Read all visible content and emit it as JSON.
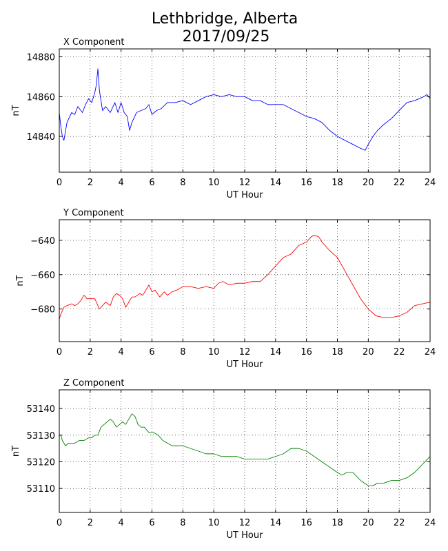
{
  "title": "Lethbridge, Alberta",
  "subtitle": "2017/09/25",
  "chart_data": [
    {
      "type": "line",
      "title": "X Component",
      "xlabel": "UT Hour",
      "ylabel": "nT",
      "color": "#0000ff",
      "xlim": [
        0,
        24
      ],
      "ylim": [
        14822,
        14884
      ],
      "xticks": [
        0,
        2,
        4,
        6,
        8,
        10,
        12,
        14,
        16,
        18,
        20,
        22,
        24
      ],
      "yticks": [
        14840,
        14860,
        14880
      ],
      "grid": true,
      "series": [
        {
          "x": [
            0,
            0.1,
            0.2,
            0.3,
            0.5,
            0.8,
            1.0,
            1.2,
            1.5,
            1.7,
            1.9,
            2.1,
            2.3,
            2.4,
            2.5,
            2.6,
            2.8,
            3.0,
            3.3,
            3.6,
            3.8,
            4.0,
            4.2,
            4.4,
            4.55,
            4.7,
            5.0,
            5.3,
            5.6,
            5.8,
            6.0,
            6.3,
            6.6,
            7.0,
            7.5,
            8.0,
            8.5,
            9.0,
            9.5,
            10.0,
            10.5,
            11.0,
            11.5,
            12.0,
            12.5,
            13.0,
            13.5,
            14.0,
            14.5,
            15.0,
            15.5,
            16.0,
            16.5,
            17.0,
            17.5,
            18.0,
            18.5,
            19.0,
            19.5,
            19.8,
            20.0,
            20.3,
            20.6,
            21.0,
            21.5,
            22.0,
            22.5,
            23.0,
            23.3,
            23.6,
            23.8,
            24.0
          ],
          "y": [
            14852,
            14845,
            14840,
            14838,
            14847,
            14852,
            14851,
            14855,
            14852,
            14856,
            14859,
            14857,
            14862,
            14866,
            14874,
            14863,
            14853,
            14855,
            14852,
            14857,
            14852,
            14857,
            14852,
            14850,
            14843,
            14847,
            14852,
            14853,
            14854,
            14856,
            14851,
            14853,
            14854,
            14857,
            14857,
            14858,
            14856,
            14858,
            14860,
            14861,
            14860,
            14861,
            14860,
            14860,
            14858,
            14858,
            14856,
            14856,
            14856,
            14854,
            14852,
            14850,
            14849,
            14847,
            14843,
            14840,
            14838,
            14836,
            14834,
            14833,
            14836,
            14840,
            14843,
            14846,
            14849,
            14853,
            14857,
            14858,
            14859,
            14860,
            14861,
            14859
          ]
        }
      ]
    },
    {
      "type": "line",
      "title": "Y Component",
      "xlabel": "UT Hour",
      "ylabel": "nT",
      "color": "#ff0000",
      "xlim": [
        0,
        24
      ],
      "ylim": [
        -699,
        -628
      ],
      "xticks": [
        0,
        2,
        4,
        6,
        8,
        10,
        12,
        14,
        16,
        18,
        20,
        22,
        24
      ],
      "yticks": [
        -640,
        -660,
        -680
      ],
      "grid": true,
      "series": [
        {
          "x": [
            0,
            0.1,
            0.3,
            0.5,
            0.8,
            1.0,
            1.2,
            1.4,
            1.6,
            1.8,
            2.0,
            2.3,
            2.6,
            2.8,
            3.0,
            3.3,
            3.5,
            3.7,
            3.9,
            4.1,
            4.3,
            4.5,
            4.7,
            4.9,
            5.2,
            5.4,
            5.6,
            5.8,
            6.0,
            6.2,
            6.5,
            6.8,
            7.0,
            7.3,
            7.6,
            8.0,
            8.5,
            9.0,
            9.5,
            10.0,
            10.3,
            10.6,
            11.0,
            11.5,
            12.0,
            12.5,
            13.0,
            13.5,
            14.0,
            14.5,
            15.0,
            15.5,
            16.0,
            16.3,
            16.5,
            16.8,
            17.0,
            17.5,
            18.0,
            18.5,
            19.0,
            19.5,
            20.0,
            20.5,
            21.0,
            21.5,
            22.0,
            22.5,
            23.0,
            23.5,
            24.0
          ],
          "y": [
            -686,
            -683,
            -679,
            -678,
            -677,
            -678,
            -677,
            -675,
            -672,
            -674,
            -674,
            -674,
            -680,
            -678,
            -676,
            -678,
            -673,
            -671,
            -672,
            -674,
            -679,
            -676,
            -673,
            -673,
            -671,
            -672,
            -669,
            -666,
            -670,
            -669,
            -673,
            -670,
            -672,
            -670,
            -669,
            -667,
            -667,
            -668,
            -667,
            -668,
            -665,
            -664,
            -666,
            -665,
            -665,
            -664,
            -664,
            -660,
            -655,
            -650,
            -648,
            -643,
            -641,
            -638,
            -637,
            -638,
            -641,
            -646,
            -650,
            -658,
            -666,
            -674,
            -680,
            -684,
            -685,
            -685,
            -684,
            -682,
            -678,
            -677,
            -676
          ]
        }
      ]
    },
    {
      "type": "line",
      "title": "Z Component",
      "xlabel": "UT Hour",
      "ylabel": "nT",
      "color": "#008000",
      "xlim": [
        0,
        24
      ],
      "ylim": [
        53101,
        53147
      ],
      "xticks": [
        0,
        2,
        4,
        6,
        8,
        10,
        12,
        14,
        16,
        18,
        20,
        22,
        24
      ],
      "yticks": [
        53140,
        53130,
        53120,
        53110
      ],
      "grid": true,
      "series": [
        {
          "x": [
            0,
            0.1,
            0.2,
            0.4,
            0.6,
            0.8,
            1.0,
            1.3,
            1.6,
            1.9,
            2.1,
            2.3,
            2.5,
            2.7,
            2.9,
            3.1,
            3.3,
            3.5,
            3.7,
            3.9,
            4.1,
            4.3,
            4.5,
            4.7,
            4.9,
            5.1,
            5.3,
            5.5,
            5.8,
            6.1,
            6.4,
            6.7,
            7.0,
            7.3,
            7.6,
            8.0,
            8.5,
            9.0,
            9.5,
            10.0,
            10.5,
            11.0,
            11.5,
            12.0,
            12.5,
            13.0,
            13.5,
            14.0,
            14.5,
            15.0,
            15.5,
            16.0,
            16.5,
            17.0,
            17.5,
            18.0,
            18.3,
            18.6,
            19.0,
            19.5,
            20.0,
            20.3,
            20.6,
            21.0,
            21.5,
            22.0,
            22.5,
            23.0,
            23.5,
            24.0
          ],
          "y": [
            53130,
            53130,
            53128,
            53126,
            53127,
            53127,
            53127,
            53128,
            53128,
            53129,
            53129,
            53130,
            53130,
            53133,
            53134,
            53135,
            53136,
            53135,
            53133,
            53134,
            53135,
            53134,
            53136,
            53138,
            53137,
            53134,
            53133,
            53133,
            53131,
            53131,
            53130,
            53128,
            53127,
            53126,
            53126,
            53126,
            53125,
            53124,
            53123,
            53123,
            53122,
            53122,
            53122,
            53121,
            53121,
            53121,
            53121,
            53122,
            53123,
            53125,
            53125,
            53124,
            53122,
            53120,
            53118,
            53116,
            53115,
            53116,
            53116,
            53113,
            53111,
            53111,
            53112,
            53112,
            53113,
            53113,
            53114,
            53116,
            53119,
            53122
          ]
        }
      ]
    }
  ]
}
